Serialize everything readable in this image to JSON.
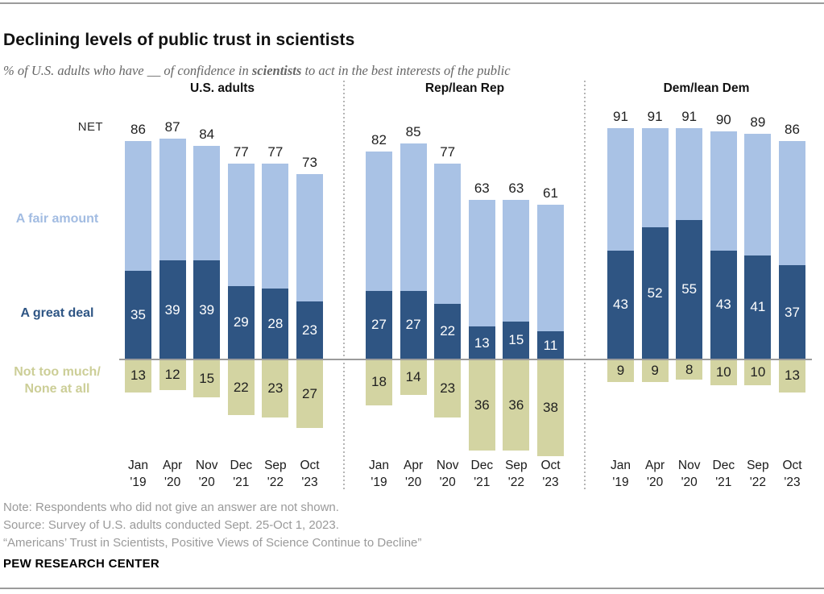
{
  "header": {
    "title": "Declining levels of public trust in scientists",
    "subtitle_part1": "% of U.S. adults who have __ of confidence in ",
    "subtitle_bold": "scientists",
    "subtitle_part2": " to act in the best interests of the public"
  },
  "legend": {
    "net": "NET",
    "fair_amount": "A fair amount",
    "great_deal": "A great deal",
    "not_much_line1": "Not too much/",
    "not_much_line2": "None at all"
  },
  "colors": {
    "fair_bar": "#a9c2e5",
    "great_bar": "#2f5583",
    "not_much_bar": "#d3d4a2",
    "fair_text": "#a2bce2",
    "great_text": "#2e5584",
    "not_much_text": "#ccce97",
    "baseline": "#9b9b9b",
    "value_on_dark": "#ffffff",
    "value_dark": "#1f1f1f",
    "note_text": "#9a9a9a"
  },
  "chart_data": {
    "type": "bar",
    "subtype": "diverging-stacked-columns",
    "unit": "%",
    "title": "Declining levels of public trust in scientists",
    "subtitle": "% of U.S. adults who have __ of confidence in scientists to act in the best interests of the public",
    "legend_entries": [
      "A fair amount",
      "A great deal",
      "Not too much/None at all"
    ],
    "net_header": "NET",
    "categories_line1": [
      "Jan",
      "Apr",
      "Nov",
      "Dec",
      "Sep",
      "Oct"
    ],
    "categories_line2": [
      "'19",
      "'20",
      "'20",
      "'21",
      "'22",
      "'23"
    ],
    "panels": [
      {
        "label": "U.S. adults",
        "net": [
          86,
          87,
          84,
          77,
          77,
          73
        ],
        "a_great_deal": [
          35,
          39,
          39,
          29,
          28,
          23
        ],
        "not_too_much_none": [
          13,
          12,
          15,
          22,
          23,
          27
        ]
      },
      {
        "label": "Rep/lean Rep",
        "net": [
          82,
          85,
          77,
          63,
          63,
          61
        ],
        "a_great_deal": [
          27,
          27,
          22,
          13,
          15,
          11
        ],
        "not_too_much_none": [
          18,
          14,
          23,
          36,
          36,
          38
        ]
      },
      {
        "label": "Dem/lean Dem",
        "net": [
          91,
          91,
          91,
          90,
          89,
          86
        ],
        "a_great_deal": [
          43,
          52,
          55,
          43,
          41,
          37
        ],
        "not_too_much_none": [
          9,
          9,
          8,
          10,
          10,
          13
        ]
      }
    ]
  },
  "footer": {
    "note": "Note: Respondents who did not give an answer are not shown.",
    "source": "Source: Survey of U.S. adults conducted Sept. 25-Oct 1, 2023.",
    "report": "“Americans’ Trust in Scientists, Positive Views of Science Continue to Decline”",
    "brand": "PEW RESEARCH CENTER"
  }
}
